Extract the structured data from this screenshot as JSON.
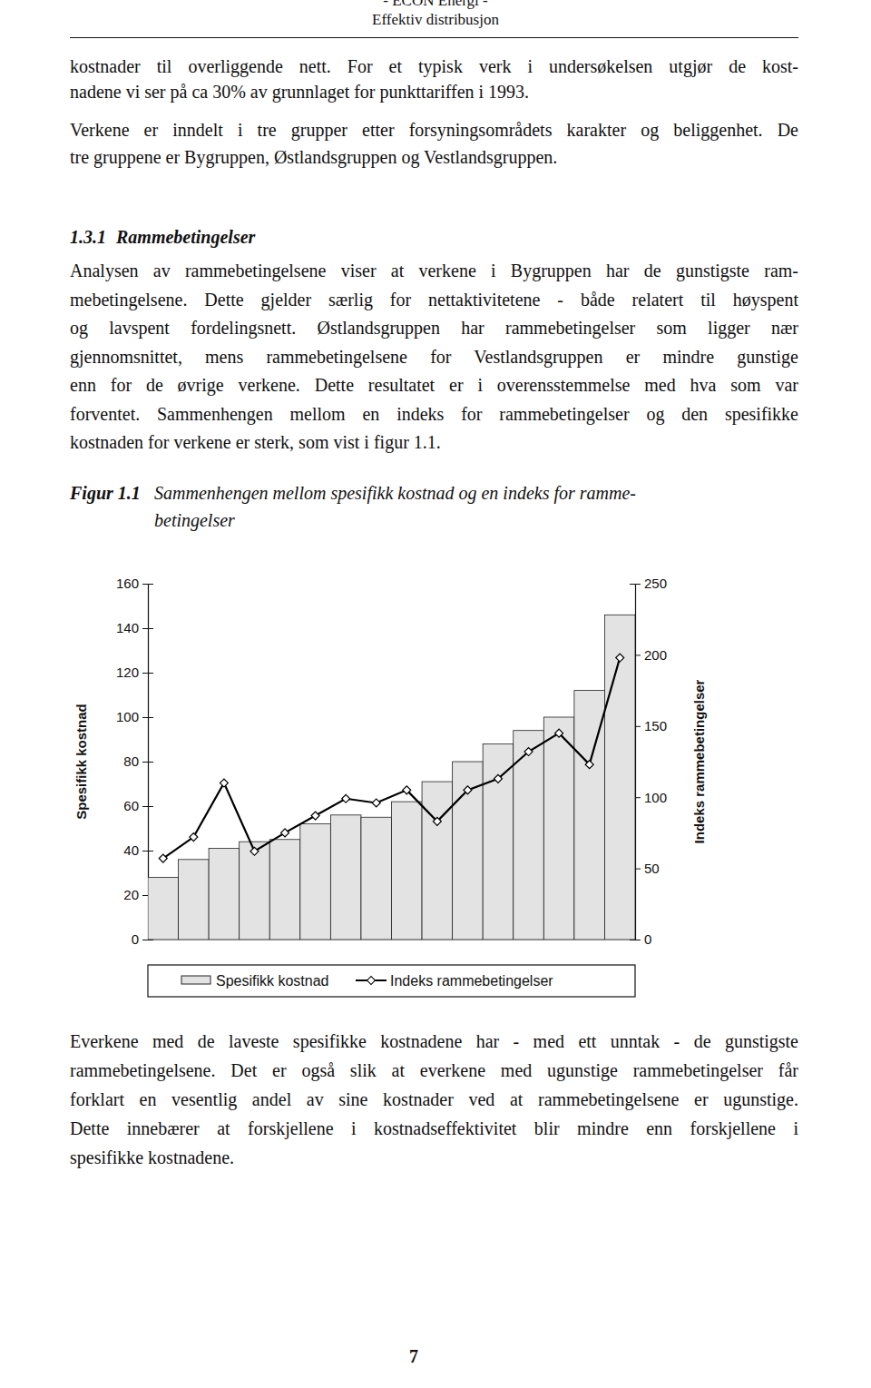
{
  "header": {
    "line1": "- ECON Energi -",
    "line2": "Effektiv distribusjon"
  },
  "paragraphs": [
    [
      "kostnader til overliggende nett. For et typisk verk i undersøkelsen utgjør de kost-",
      "nadene vi ser på ca 30% av grunnlaget for punkttariffen i 1993."
    ],
    [
      "Verkene er inndelt i tre grupper etter forsyningsområdets karakter og beliggenhet. De",
      "tre gruppene er Bygruppen, Østlandsgruppen og Vestlandsgruppen."
    ],
    [
      "Analysen av rammebetingelsene viser at verkene i Bygruppen har de gunstigste ram-",
      "mebetingelsene. Dette gjelder særlig for nettaktivitetene - både relatert til høyspent",
      "og lavspent fordelingsnett. Østlandsgruppen har rammebetingelser som ligger nær",
      "gjennomsnittet, mens rammebetingelsene for Vestlandsgruppen er mindre gunstige",
      "enn for de øvrige verkene. Dette resultatet er i overensstemmelse med hva som var",
      "forventet. Sammenhengen mellom en indeks for rammebetingelser og den spesifikke",
      "kostnaden for verkene er sterk, som vist i figur 1.1."
    ],
    [
      "Everkene med de laveste spesifikke kostnadene har - med ett unntak - de gunstigste",
      "rammebetingelsene. Det er også slik at everkene med ugunstige rammebetingelser får",
      "forklart en vesentlig andel av sine kostnader ved at rammebetingelsene er ugunstige.",
      "Dette innebærer at forskjellene i kostnadseffektivitet blir mindre enn forskjellene i",
      "spesifikke kostnadene."
    ]
  ],
  "heading": {
    "number": "1.3.1",
    "title": "Rammebetingelser"
  },
  "figure_caption": {
    "label": "Figur 1.1",
    "lines": [
      "Sammenhengen mellom spesifikk kostnad og en indeks for ramme-",
      "betingelser"
    ]
  },
  "page_number": "7",
  "chart_data": {
    "type": "bar",
    "categories": [
      null,
      null,
      null,
      null,
      null,
      null,
      null,
      null,
      null,
      null,
      null,
      null,
      null,
      null,
      null,
      null
    ],
    "series": [
      {
        "name": "Spesifikk kostnad",
        "type": "bar",
        "color": "#e3e3e3",
        "values": [
          28,
          36,
          41,
          44,
          45,
          52,
          56,
          55,
          62,
          71,
          80,
          88,
          94,
          100,
          112,
          146
        ]
      },
      {
        "name": "Indeks rammebetingelser",
        "type": "line",
        "axis": "y2",
        "color": "#000000",
        "marker": "diamond",
        "values": [
          57,
          72,
          110,
          62,
          75,
          87,
          99,
          96,
          105,
          83,
          105,
          113,
          132,
          145,
          123,
          198
        ]
      }
    ],
    "ylabel": "Spesifikk kostnad",
    "y2label": "Indeks rammebetingelser",
    "ylim": [
      0,
      160
    ],
    "yticks": [
      0,
      20,
      40,
      60,
      80,
      100,
      120,
      140,
      160
    ],
    "y2lim": [
      0,
      250
    ],
    "y2ticks": [
      0,
      50,
      100,
      150,
      200,
      250
    ],
    "legend": "bottom"
  }
}
